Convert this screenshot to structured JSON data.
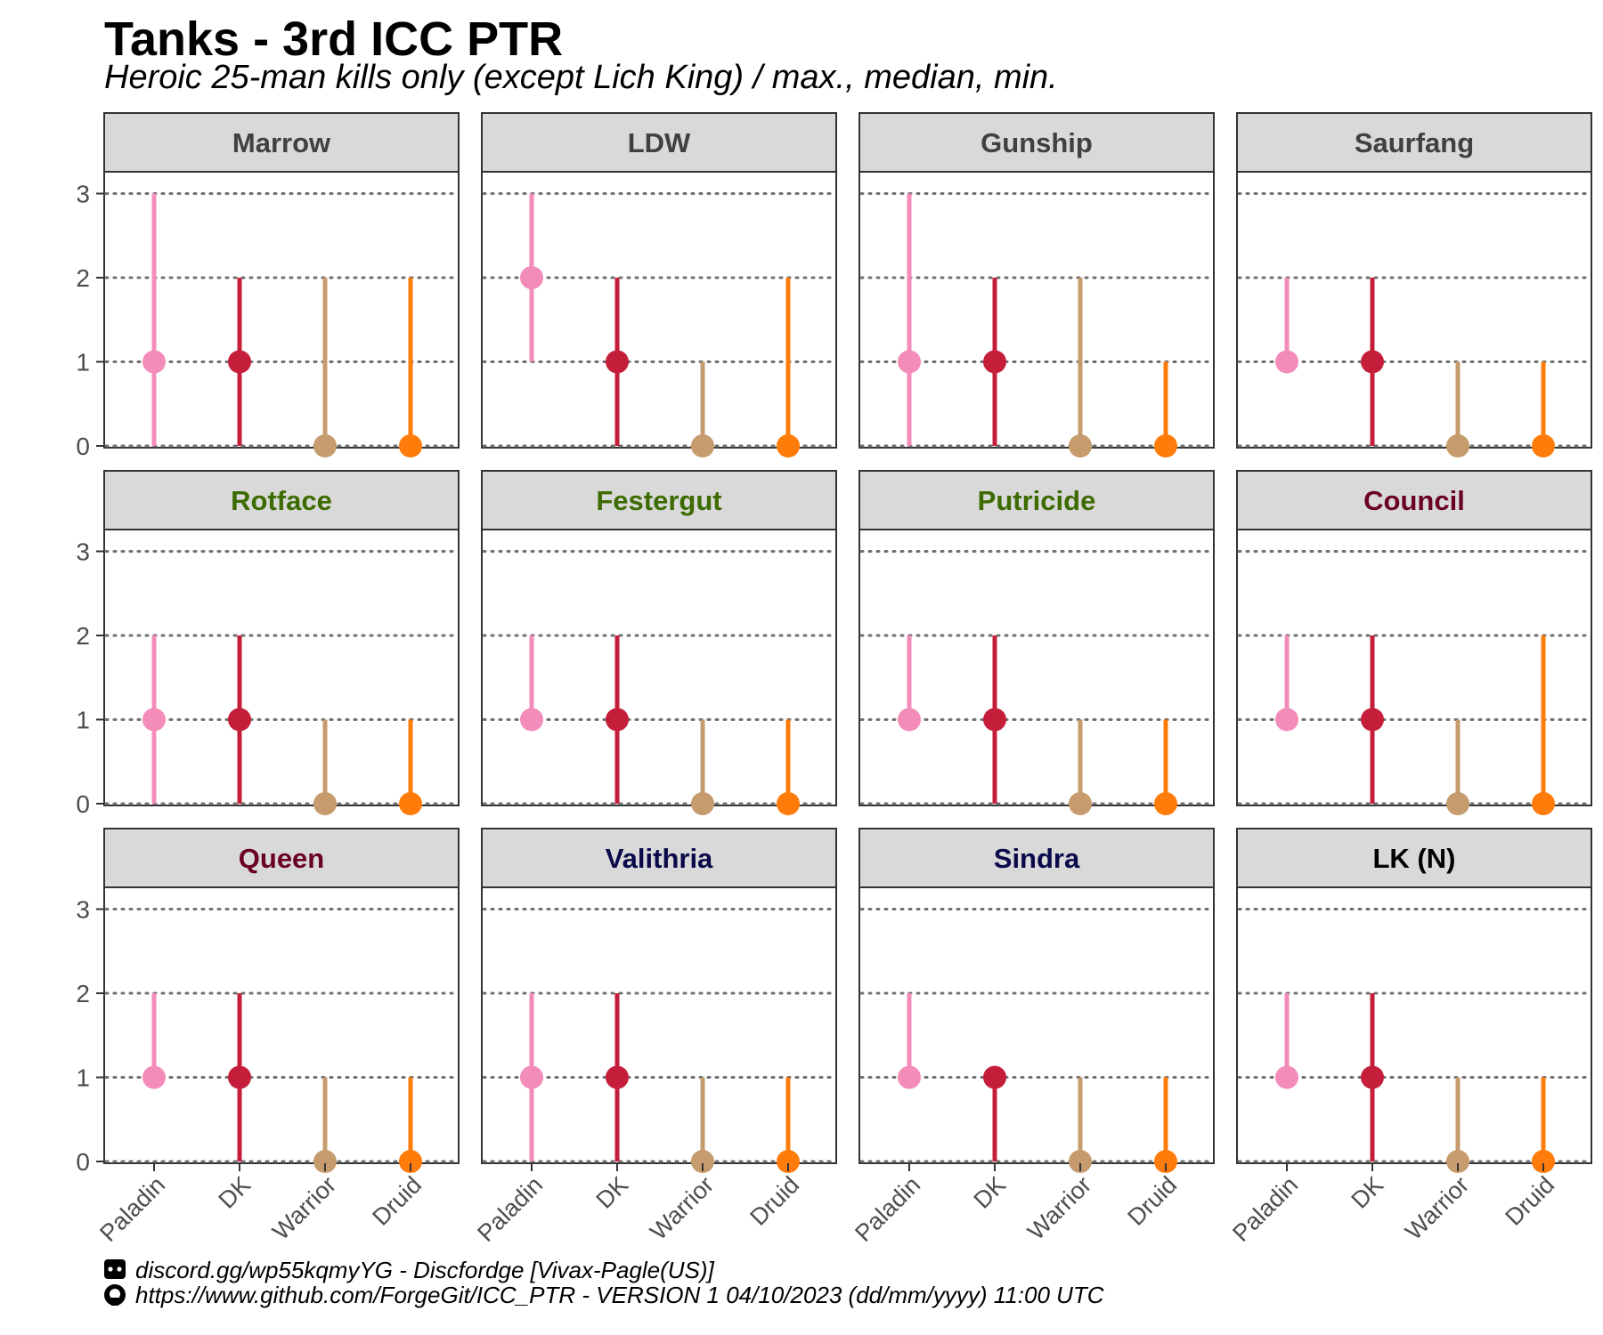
{
  "chart_data": {
    "type": "scatter",
    "title": "Tanks - 3rd ICC PTR",
    "subtitle": "Heroic 25-man kills only (except Lich King) / max., median, min.",
    "categories": [
      "Paladin",
      "DK",
      "Warrior",
      "Druid"
    ],
    "ylim": [
      0,
      3
    ],
    "yticks": [
      "0",
      "1",
      "2",
      "3"
    ],
    "grid": "horizontal dotted",
    "class_colors": {
      "Paladin": "#F48CBA",
      "DK": "#C41E3A",
      "Warrior": "#C69B6D",
      "Druid": "#FF7C0A"
    },
    "panels": [
      {
        "name": "Marrow",
        "color": "#404040",
        "max": [
          3,
          2,
          2,
          2
        ],
        "median": [
          1,
          1,
          0,
          0
        ],
        "min": [
          0,
          0,
          0,
          0
        ]
      },
      {
        "name": "LDW",
        "color": "#404040",
        "max": [
          3,
          2,
          1,
          2
        ],
        "median": [
          2,
          1,
          0,
          0
        ],
        "min": [
          1,
          0,
          0,
          0
        ]
      },
      {
        "name": "Gunship",
        "color": "#404040",
        "max": [
          3,
          2,
          2,
          1
        ],
        "median": [
          1,
          1,
          0,
          0
        ],
        "min": [
          0,
          0,
          0,
          0
        ]
      },
      {
        "name": "Saurfang",
        "color": "#404040",
        "max": [
          2,
          2,
          1,
          1
        ],
        "median": [
          1,
          1,
          0,
          0
        ],
        "min": [
          1,
          0,
          0,
          0
        ]
      },
      {
        "name": "Rotface",
        "color": "#3D6B00",
        "max": [
          2,
          2,
          1,
          1
        ],
        "median": [
          1,
          1,
          0,
          0
        ],
        "min": [
          0,
          0,
          0,
          0
        ]
      },
      {
        "name": "Festergut",
        "color": "#3D6B00",
        "max": [
          2,
          2,
          1,
          1
        ],
        "median": [
          1,
          1,
          0,
          0
        ],
        "min": [
          1,
          0,
          0,
          0
        ]
      },
      {
        "name": "Putricide",
        "color": "#3D6B00",
        "max": [
          2,
          2,
          1,
          1
        ],
        "median": [
          1,
          1,
          0,
          0
        ],
        "min": [
          1,
          0,
          0,
          0
        ]
      },
      {
        "name": "Council",
        "color": "#6B0025",
        "max": [
          2,
          2,
          1,
          2
        ],
        "median": [
          1,
          1,
          0,
          0
        ],
        "min": [
          1,
          0,
          0,
          0
        ]
      },
      {
        "name": "Queen",
        "color": "#6B0025",
        "max": [
          2,
          2,
          1,
          1
        ],
        "median": [
          1,
          1,
          0,
          0
        ],
        "min": [
          1,
          0,
          0,
          0
        ]
      },
      {
        "name": "Valithria",
        "color": "#0A0A4A",
        "max": [
          2,
          2,
          1,
          1
        ],
        "median": [
          1,
          1,
          0,
          0
        ],
        "min": [
          0,
          0,
          0,
          0
        ]
      },
      {
        "name": "Sindra",
        "color": "#0A0A4A",
        "max": [
          2,
          1,
          1,
          1
        ],
        "median": [
          1,
          1,
          0,
          0
        ],
        "min": [
          1,
          0,
          0,
          0
        ]
      },
      {
        "name": "LK (N)",
        "color": "#000000",
        "max": [
          2,
          2,
          1,
          1
        ],
        "median": [
          1,
          1,
          0,
          0
        ],
        "min": [
          1,
          0,
          0,
          0
        ]
      }
    ],
    "captions": [
      {
        "icon": "discord-icon",
        "text": "discord.gg/wp55kqmyYG - Discfordge [Vivax-Pagle(US)]"
      },
      {
        "icon": "github-icon",
        "text": "https://www.github.com/ForgeGit/ICC_PTR - VERSION 1 04/10/2023 (dd/mm/yyyy) 11:00 UTC"
      }
    ]
  }
}
